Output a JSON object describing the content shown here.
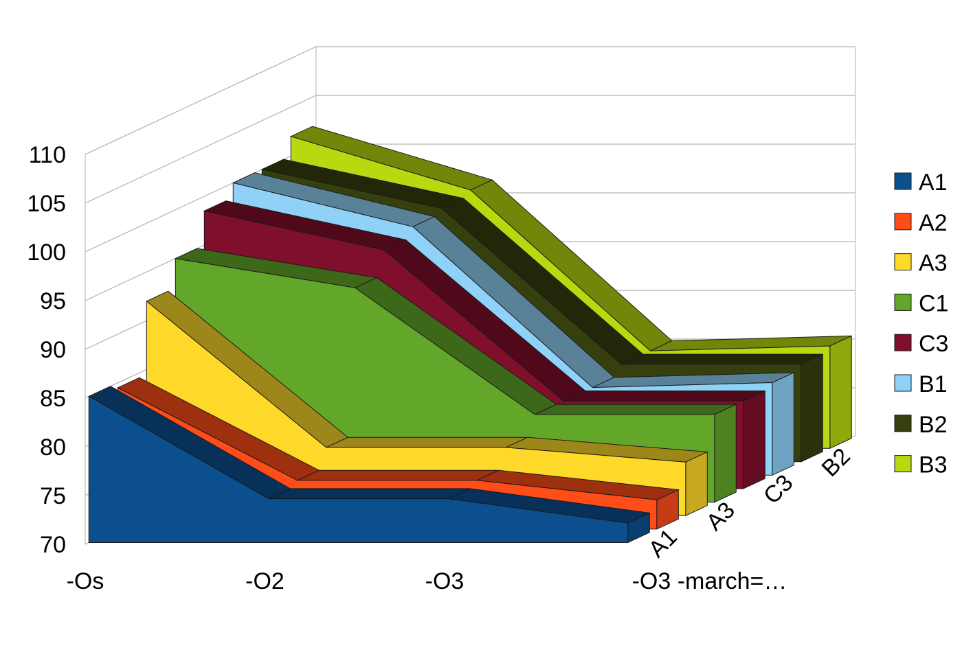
{
  "chart_data": {
    "type": "area",
    "subtype": "3d-deep",
    "categories": [
      "-Os",
      "-O2",
      "-O3",
      "-O3 -march=…"
    ],
    "depth_labels": [
      "A1",
      "A3",
      "C3",
      "B2"
    ],
    "yticks": [
      70,
      75,
      80,
      85,
      90,
      95,
      100,
      105,
      110
    ],
    "ylim": [
      70,
      110
    ],
    "grid": true,
    "legend_position": "right",
    "series": [
      {
        "name": "A1",
        "color": "#0b4f8f",
        "values": [
          85,
          74.5,
          74.5,
          72
        ]
      },
      {
        "name": "A2",
        "color": "#ff4d1a",
        "values": [
          84.5,
          75,
          75,
          73
        ]
      },
      {
        "name": "A3",
        "color": "#ffd92a",
        "values": [
          92,
          77,
          77,
          75.5
        ]
      },
      {
        "name": "C1",
        "color": "#63a72a",
        "values": [
          95,
          92,
          79,
          79
        ]
      },
      {
        "name": "C3",
        "color": "#7f0f2b",
        "values": [
          98.5,
          94.5,
          79,
          79
        ]
      },
      {
        "name": "B1",
        "color": "#8fd1f7",
        "values": [
          100,
          95.5,
          79,
          79.5
        ]
      },
      {
        "name": "B2",
        "color": "#36400f",
        "values": [
          100,
          96,
          80,
          80
        ]
      },
      {
        "name": "B3",
        "color": "#b6d90f",
        "values": [
          102,
          96.5,
          80,
          80.5
        ]
      }
    ]
  }
}
